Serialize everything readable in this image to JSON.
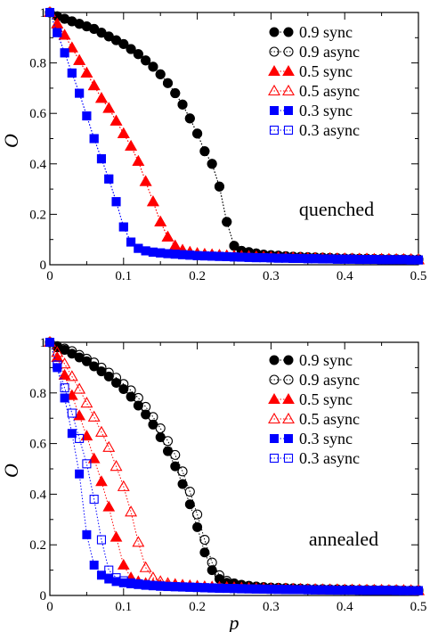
{
  "chart_data": [
    {
      "type": "scatter",
      "title": "",
      "annotation": "quenched",
      "xlabel": "",
      "ylabel": "O",
      "xlim": [
        0,
        0.5
      ],
      "ylim": [
        0,
        1
      ],
      "xticks": [
        "0",
        "0.1",
        "0.2",
        "0.3",
        "0.4",
        "0.5"
      ],
      "yticks": [
        "0",
        "0.2",
        "0.4",
        "0.6",
        "0.8",
        "1"
      ],
      "legend_position": "top-right",
      "x": [
        0.0,
        0.01,
        0.02,
        0.03,
        0.04,
        0.05,
        0.06,
        0.07,
        0.08,
        0.09,
        0.1,
        0.11,
        0.12,
        0.13,
        0.14,
        0.15,
        0.16,
        0.17,
        0.18,
        0.19,
        0.2,
        0.21,
        0.22,
        0.23,
        0.24,
        0.25,
        0.26,
        0.27,
        0.28,
        0.29,
        0.3,
        0.31,
        0.32,
        0.33,
        0.34,
        0.35,
        0.36,
        0.37,
        0.38,
        0.39,
        0.4,
        0.41,
        0.42,
        0.43,
        0.44,
        0.45,
        0.46,
        0.47,
        0.48,
        0.49,
        0.5
      ],
      "series": [
        {
          "name": "0.9 sync",
          "color": "#000000",
          "marker": "circle",
          "filled": true,
          "values": [
            1.0,
            0.985,
            0.975,
            0.965,
            0.955,
            0.945,
            0.935,
            0.92,
            0.905,
            0.89,
            0.875,
            0.855,
            0.835,
            0.81,
            0.785,
            0.755,
            0.72,
            0.68,
            0.635,
            0.58,
            0.52,
            0.45,
            0.4,
            0.31,
            0.17,
            0.075,
            0.055,
            0.05,
            0.045,
            0.04,
            0.038,
            0.036,
            0.034,
            0.032,
            0.031,
            0.03,
            0.029,
            0.028,
            0.027,
            0.026,
            0.025,
            0.025,
            0.024,
            0.024,
            0.023,
            0.023,
            0.022,
            0.022,
            0.022,
            0.021,
            0.021
          ]
        },
        {
          "name": "0.9 async",
          "color": "#000000",
          "marker": "circle",
          "filled": false,
          "values": [
            1.0,
            0.985,
            0.975,
            0.965,
            0.955,
            0.945,
            0.935,
            0.92,
            0.905,
            0.89,
            0.875,
            0.855,
            0.835,
            0.81,
            0.785,
            0.755,
            0.72,
            0.68,
            0.635,
            0.58,
            0.52,
            0.45,
            0.4,
            0.31,
            0.17,
            0.075,
            0.055,
            0.05,
            0.045,
            0.04,
            0.038,
            0.036,
            0.034,
            0.032,
            0.031,
            0.03,
            0.029,
            0.028,
            0.027,
            0.026,
            0.025,
            0.025,
            0.024,
            0.024,
            0.023,
            0.023,
            0.022,
            0.022,
            0.022,
            0.021,
            0.021
          ]
        },
        {
          "name": "0.5 sync",
          "color": "#ff0000",
          "marker": "triangle",
          "filled": true,
          "values": [
            1.0,
            0.955,
            0.91,
            0.86,
            0.81,
            0.76,
            0.71,
            0.66,
            0.62,
            0.57,
            0.52,
            0.47,
            0.41,
            0.33,
            0.25,
            0.17,
            0.11,
            0.075,
            0.058,
            0.05,
            0.045,
            0.042,
            0.04,
            0.038,
            0.036,
            0.035,
            0.034,
            0.033,
            0.032,
            0.031,
            0.03,
            0.029,
            0.028,
            0.028,
            0.027,
            0.026,
            0.026,
            0.025,
            0.025,
            0.024,
            0.024,
            0.023,
            0.023,
            0.023,
            0.022,
            0.022,
            0.022,
            0.021,
            0.021,
            0.021,
            0.02
          ]
        },
        {
          "name": "0.5 async",
          "color": "#ff0000",
          "marker": "triangle",
          "filled": false,
          "values": [
            1.0,
            0.955,
            0.91,
            0.86,
            0.81,
            0.76,
            0.71,
            0.66,
            0.62,
            0.57,
            0.52,
            0.47,
            0.41,
            0.33,
            0.25,
            0.17,
            0.11,
            0.075,
            0.058,
            0.05,
            0.045,
            0.042,
            0.04,
            0.038,
            0.036,
            0.035,
            0.034,
            0.033,
            0.032,
            0.031,
            0.03,
            0.029,
            0.028,
            0.028,
            0.027,
            0.026,
            0.026,
            0.025,
            0.025,
            0.024,
            0.024,
            0.023,
            0.023,
            0.023,
            0.022,
            0.022,
            0.022,
            0.021,
            0.021,
            0.021,
            0.02
          ]
        },
        {
          "name": "0.3 sync",
          "color": "#0000ff",
          "marker": "square",
          "filled": true,
          "values": [
            1.0,
            0.92,
            0.84,
            0.76,
            0.68,
            0.59,
            0.5,
            0.42,
            0.34,
            0.25,
            0.15,
            0.09,
            0.065,
            0.055,
            0.05,
            0.047,
            0.044,
            0.042,
            0.04,
            0.038,
            0.036,
            0.035,
            0.034,
            0.033,
            0.032,
            0.031,
            0.03,
            0.029,
            0.028,
            0.028,
            0.027,
            0.026,
            0.026,
            0.025,
            0.025,
            0.024,
            0.024,
            0.023,
            0.023,
            0.022,
            0.022,
            0.022,
            0.021,
            0.021,
            0.021,
            0.02,
            0.02,
            0.02,
            0.02,
            0.019,
            0.019
          ]
        },
        {
          "name": "0.3 async",
          "color": "#0000ff",
          "marker": "square",
          "filled": false,
          "values": [
            1.0,
            0.92,
            0.84,
            0.76,
            0.68,
            0.59,
            0.5,
            0.42,
            0.34,
            0.25,
            0.15,
            0.09,
            0.065,
            0.055,
            0.05,
            0.047,
            0.044,
            0.042,
            0.04,
            0.038,
            0.036,
            0.035,
            0.034,
            0.033,
            0.032,
            0.031,
            0.03,
            0.029,
            0.028,
            0.028,
            0.027,
            0.026,
            0.026,
            0.025,
            0.025,
            0.024,
            0.024,
            0.023,
            0.023,
            0.022,
            0.022,
            0.022,
            0.021,
            0.021,
            0.021,
            0.02,
            0.02,
            0.02,
            0.02,
            0.019,
            0.019
          ]
        }
      ]
    },
    {
      "type": "scatter",
      "title": "",
      "annotation": "annealed",
      "xlabel": "p",
      "ylabel": "O",
      "xlim": [
        0,
        0.5
      ],
      "ylim": [
        0,
        1
      ],
      "xticks": [
        "0",
        "0.1",
        "0.2",
        "0.3",
        "0.4",
        "0.5"
      ],
      "yticks": [
        "0",
        "0.2",
        "0.4",
        "0.6",
        "0.8",
        "1"
      ],
      "legend_position": "top-right",
      "x": [
        0.0,
        0.01,
        0.02,
        0.03,
        0.04,
        0.05,
        0.06,
        0.07,
        0.08,
        0.09,
        0.1,
        0.11,
        0.12,
        0.13,
        0.14,
        0.15,
        0.16,
        0.17,
        0.18,
        0.19,
        0.2,
        0.21,
        0.22,
        0.23,
        0.24,
        0.25,
        0.26,
        0.27,
        0.28,
        0.29,
        0.3,
        0.31,
        0.32,
        0.33,
        0.34,
        0.35,
        0.36,
        0.37,
        0.38,
        0.39,
        0.4,
        0.41,
        0.42,
        0.43,
        0.44,
        0.45,
        0.46,
        0.47,
        0.48,
        0.49,
        0.5
      ],
      "series": [
        {
          "name": "0.9 sync",
          "color": "#000000",
          "marker": "circle",
          "filled": true,
          "values": [
            1.0,
            0.98,
            0.97,
            0.955,
            0.94,
            0.925,
            0.905,
            0.885,
            0.865,
            0.84,
            0.815,
            0.785,
            0.75,
            0.715,
            0.675,
            0.625,
            0.57,
            0.51,
            0.44,
            0.36,
            0.27,
            0.17,
            0.1,
            0.065,
            0.05,
            0.045,
            0.04,
            0.037,
            0.035,
            0.033,
            0.031,
            0.03,
            0.029,
            0.028,
            0.027,
            0.026,
            0.025,
            0.025,
            0.024,
            0.024,
            0.023,
            0.023,
            0.022,
            0.022,
            0.022,
            0.021,
            0.021,
            0.021,
            0.02,
            0.02,
            0.02
          ]
        },
        {
          "name": "0.9 async",
          "color": "#000000",
          "marker": "circle",
          "filled": false,
          "values": [
            1.0,
            0.985,
            0.975,
            0.965,
            0.95,
            0.935,
            0.92,
            0.9,
            0.88,
            0.86,
            0.835,
            0.81,
            0.78,
            0.745,
            0.705,
            0.66,
            0.61,
            0.555,
            0.49,
            0.41,
            0.32,
            0.22,
            0.13,
            0.08,
            0.058,
            0.048,
            0.042,
            0.038,
            0.035,
            0.033,
            0.031,
            0.03,
            0.029,
            0.028,
            0.027,
            0.026,
            0.025,
            0.025,
            0.024,
            0.024,
            0.023,
            0.023,
            0.022,
            0.022,
            0.022,
            0.021,
            0.021,
            0.021,
            0.02,
            0.02,
            0.02
          ]
        },
        {
          "name": "0.5 sync",
          "color": "#ff0000",
          "marker": "triangle",
          "filled": true,
          "values": [
            1.0,
            0.94,
            0.87,
            0.79,
            0.71,
            0.63,
            0.54,
            0.45,
            0.35,
            0.23,
            0.12,
            0.07,
            0.055,
            0.048,
            0.044,
            0.041,
            0.039,
            0.037,
            0.035,
            0.034,
            0.033,
            0.032,
            0.031,
            0.03,
            0.029,
            0.028,
            0.028,
            0.027,
            0.026,
            0.026,
            0.025,
            0.025,
            0.024,
            0.024,
            0.023,
            0.023,
            0.023,
            0.022,
            0.022,
            0.022,
            0.021,
            0.021,
            0.021,
            0.021,
            0.02,
            0.02,
            0.02,
            0.02,
            0.02,
            0.019,
            0.019
          ]
        },
        {
          "name": "0.5 async",
          "color": "#ff0000",
          "marker": "triangle",
          "filled": false,
          "values": [
            1.0,
            0.96,
            0.915,
            0.865,
            0.815,
            0.76,
            0.705,
            0.645,
            0.585,
            0.51,
            0.43,
            0.33,
            0.21,
            0.11,
            0.07,
            0.055,
            0.048,
            0.044,
            0.041,
            0.039,
            0.037,
            0.035,
            0.034,
            0.033,
            0.032,
            0.031,
            0.03,
            0.029,
            0.028,
            0.028,
            0.027,
            0.026,
            0.026,
            0.025,
            0.025,
            0.024,
            0.024,
            0.023,
            0.023,
            0.023,
            0.022,
            0.022,
            0.022,
            0.021,
            0.021,
            0.021,
            0.02,
            0.02,
            0.02,
            0.02,
            0.019
          ]
        },
        {
          "name": "0.3 sync",
          "color": "#0000ff",
          "marker": "square",
          "filled": true,
          "values": [
            1.0,
            0.9,
            0.78,
            0.64,
            0.48,
            0.24,
            0.12,
            0.08,
            0.065,
            0.055,
            0.05,
            0.046,
            0.043,
            0.04,
            0.038,
            0.036,
            0.035,
            0.034,
            0.033,
            0.032,
            0.031,
            0.03,
            0.029,
            0.028,
            0.028,
            0.027,
            0.026,
            0.026,
            0.025,
            0.025,
            0.024,
            0.024,
            0.023,
            0.023,
            0.023,
            0.022,
            0.022,
            0.022,
            0.021,
            0.021,
            0.021,
            0.021,
            0.02,
            0.02,
            0.02,
            0.02,
            0.02,
            0.019,
            0.019,
            0.019,
            0.019
          ]
        },
        {
          "name": "0.3 async",
          "color": "#0000ff",
          "marker": "square",
          "filled": false,
          "values": [
            1.0,
            0.91,
            0.82,
            0.72,
            0.62,
            0.52,
            0.38,
            0.22,
            0.1,
            0.07,
            0.058,
            0.05,
            0.046,
            0.043,
            0.04,
            0.038,
            0.036,
            0.035,
            0.034,
            0.033,
            0.032,
            0.031,
            0.03,
            0.029,
            0.028,
            0.028,
            0.027,
            0.026,
            0.026,
            0.025,
            0.025,
            0.024,
            0.024,
            0.023,
            0.023,
            0.023,
            0.022,
            0.022,
            0.022,
            0.021,
            0.021,
            0.021,
            0.021,
            0.02,
            0.02,
            0.02,
            0.02,
            0.02,
            0.019,
            0.019,
            0.019
          ]
        }
      ]
    }
  ]
}
